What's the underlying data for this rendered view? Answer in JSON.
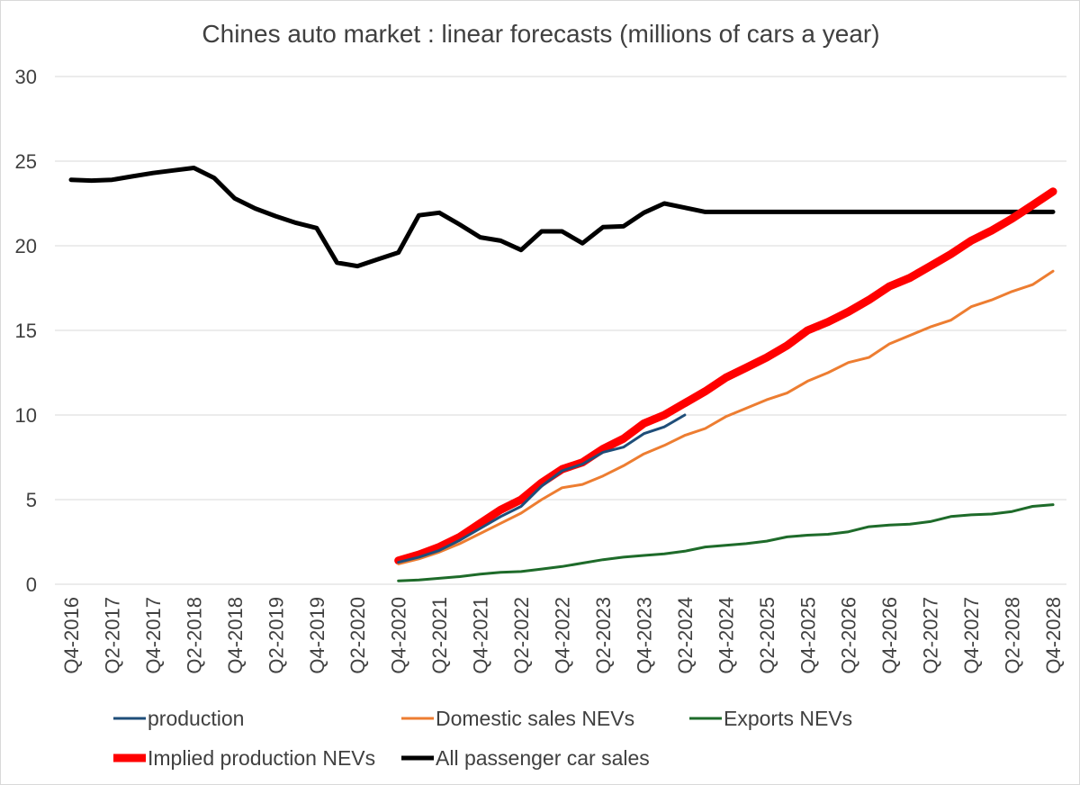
{
  "chart_data": {
    "type": "line",
    "title": "Chines auto market : linear forecasts (millions of cars a year)",
    "xlabel": "",
    "ylabel": "",
    "ylim": [
      0,
      30
    ],
    "y_ticks": [
      0,
      5,
      10,
      15,
      20,
      25,
      30
    ],
    "grid": true,
    "legend_position": "bottom",
    "x_labels": [
      "Q4-2016",
      "Q2-2017",
      "Q4-2017",
      "Q2-2018",
      "Q4-2018",
      "Q2-2019",
      "Q4-2019",
      "Q2-2020",
      "Q4-2020",
      "Q2-2021",
      "Q4-2021",
      "Q2-2022",
      "Q4-2022",
      "Q2-2023",
      "Q4-2023",
      "Q2-2024",
      "Q4-2024",
      "Q2-2025",
      "Q4-2025",
      "Q2-2026",
      "Q4-2026",
      "Q2-2027",
      "Q4-2027",
      "Q2-2028",
      "Q4-2028"
    ],
    "quarters": [
      "Q4-2016",
      "Q1-2017",
      "Q2-2017",
      "Q3-2017",
      "Q4-2017",
      "Q1-2018",
      "Q2-2018",
      "Q3-2018",
      "Q4-2018",
      "Q1-2019",
      "Q2-2019",
      "Q3-2019",
      "Q4-2019",
      "Q1-2020",
      "Q2-2020",
      "Q3-2020",
      "Q4-2020",
      "Q1-2021",
      "Q2-2021",
      "Q3-2021",
      "Q4-2021",
      "Q1-2022",
      "Q2-2022",
      "Q3-2022",
      "Q4-2022",
      "Q1-2023",
      "Q2-2023",
      "Q3-2023",
      "Q4-2023",
      "Q1-2024",
      "Q2-2024",
      "Q3-2024",
      "Q4-2024",
      "Q1-2025",
      "Q2-2025",
      "Q3-2025",
      "Q4-2025",
      "Q1-2026",
      "Q2-2026",
      "Q3-2026",
      "Q4-2026",
      "Q1-2027",
      "Q2-2027",
      "Q3-2027",
      "Q4-2027",
      "Q1-2028",
      "Q2-2028",
      "Q3-2028",
      "Q4-2028"
    ],
    "series": [
      {
        "name": "All passenger car sales",
        "color": "#000000",
        "width": 5,
        "start": "Q4-2016",
        "values": [
          23.9,
          23.85,
          23.9,
          24.1,
          24.3,
          24.45,
          24.6,
          24.0,
          22.8,
          22.2,
          21.75,
          21.35,
          21.05,
          19.0,
          18.8,
          19.2,
          19.6,
          21.8,
          21.95,
          21.25,
          20.5,
          20.3,
          19.75,
          20.85,
          20.85,
          20.15,
          21.1,
          21.15,
          21.95,
          22.5,
          22.25,
          22.0,
          22.0,
          22.0,
          22.0,
          22.0,
          22.0,
          22.0,
          22.0,
          22.0,
          22.0,
          22.0,
          22.0,
          22.0,
          22.0,
          22.0,
          22.0,
          22.0,
          22.0
        ]
      },
      {
        "name": "Implied production NEVs",
        "color": "#ff0000",
        "width": 9,
        "start": "Q4-2020",
        "values": [
          1.4,
          1.75,
          2.2,
          2.8,
          3.6,
          4.4,
          5.0,
          6.0,
          6.8,
          7.2,
          8.0,
          8.6,
          9.5,
          10.0,
          10.7,
          11.4,
          12.2,
          12.8,
          13.4,
          14.1,
          15.0,
          15.5,
          16.1,
          16.8,
          17.6,
          18.1,
          18.8,
          19.5,
          20.3,
          20.9,
          21.6,
          22.4,
          23.2
        ]
      },
      {
        "name": "Domestic sales NEVs",
        "color": "#ed7d31",
        "width": 3,
        "start": "Q4-2020",
        "values": [
          1.2,
          1.5,
          1.9,
          2.4,
          3.0,
          3.6,
          4.2,
          5.0,
          5.7,
          5.9,
          6.4,
          7.0,
          7.7,
          8.2,
          8.8,
          9.2,
          9.9,
          10.4,
          10.9,
          11.3,
          12.0,
          12.5,
          13.1,
          13.4,
          14.2,
          14.7,
          15.2,
          15.6,
          16.4,
          16.8,
          17.3,
          17.7,
          18.5
        ]
      },
      {
        "name": "production",
        "color": "#1f4e79",
        "width": 3,
        "start": "Q4-2020",
        "values": [
          1.3,
          1.6,
          2.0,
          2.6,
          3.3,
          4.0,
          4.6,
          5.8,
          6.7,
          7.1,
          7.8,
          8.1,
          8.9,
          9.3,
          10.0
        ]
      },
      {
        "name": "Exports NEVs",
        "color": "#1e6b2a",
        "width": 3,
        "start": "Q4-2020",
        "values": [
          0.2,
          0.25,
          0.35,
          0.45,
          0.6,
          0.7,
          0.75,
          0.9,
          1.05,
          1.25,
          1.45,
          1.6,
          1.7,
          1.8,
          1.95,
          2.2,
          2.3,
          2.4,
          2.55,
          2.8,
          2.9,
          2.95,
          3.1,
          3.4,
          3.5,
          3.55,
          3.7,
          4.0,
          4.1,
          4.15,
          4.3,
          4.6,
          4.7
        ]
      }
    ]
  },
  "legend": [
    {
      "label": "production",
      "color": "#1f4e79",
      "width": 3
    },
    {
      "label": "Domestic sales NEVs",
      "color": "#ed7d31",
      "width": 3
    },
    {
      "label": "Exports NEVs",
      "color": "#1e6b2a",
      "width": 3
    },
    {
      "label": "Implied production NEVs",
      "color": "#ff0000",
      "width": 9
    },
    {
      "label": "All passenger car sales",
      "color": "#000000",
      "width": 5
    }
  ]
}
